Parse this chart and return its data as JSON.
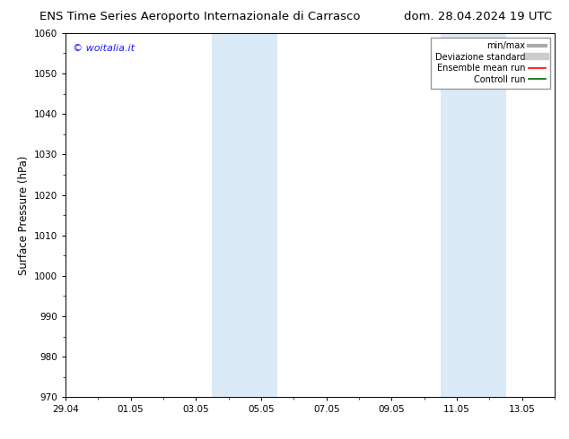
{
  "title_left": "ENS Time Series Aeroporto Internazionale di Carrasco",
  "title_right": "dom. 28.04.2024 19 UTC",
  "ylabel": "Surface Pressure (hPa)",
  "ylim": [
    970,
    1060
  ],
  "yticks": [
    970,
    980,
    990,
    1000,
    1010,
    1020,
    1030,
    1040,
    1050,
    1060
  ],
  "xtick_labels": [
    "29.04",
    "01.05",
    "03.05",
    "05.05",
    "07.05",
    "09.05",
    "11.05",
    "13.05"
  ],
  "xtick_positions": [
    0,
    2,
    4,
    6,
    8,
    10,
    12,
    14
  ],
  "xlim": [
    0,
    15
  ],
  "shaded_regions": [
    {
      "start": 4.5,
      "end": 6.5,
      "color": "#daeaf6"
    },
    {
      "start": 11.5,
      "end": 13.5,
      "color": "#daeaf6"
    }
  ],
  "watermark_text": "© woitalia.it",
  "watermark_color": "#1a1aff",
  "legend_items": [
    {
      "label": "min/max",
      "color": "#aaaaaa",
      "lw": 3
    },
    {
      "label": "Deviazione standard",
      "color": "#cccccc",
      "lw": 6
    },
    {
      "label": "Ensemble mean run",
      "color": "#ff0000",
      "lw": 1.2
    },
    {
      "label": "Controll run",
      "color": "#006600",
      "lw": 1.2
    }
  ],
  "bg_color": "#ffffff",
  "plot_bg_color": "#ffffff",
  "title_fontsize": 9.5,
  "tick_fontsize": 7.5,
  "ylabel_fontsize": 8.5,
  "watermark_fontsize": 8,
  "legend_fontsize": 7
}
